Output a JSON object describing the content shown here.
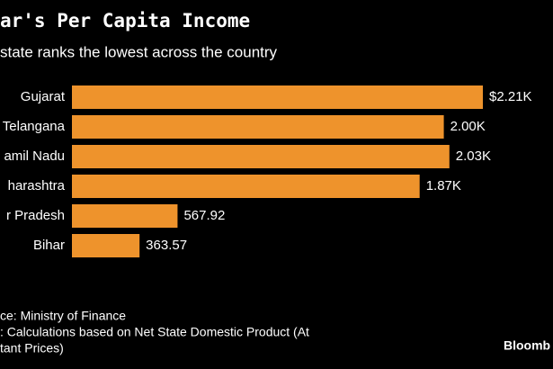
{
  "chart_data": {
    "type": "bar",
    "orientation": "horizontal",
    "title": "ar's Per Capita Income",
    "subtitle": "state ranks the lowest across the country",
    "categories": [
      "Gujarat",
      "Telangana",
      "amil Nadu",
      "harashtra",
      "r Pradesh",
      "Bihar"
    ],
    "values": [
      2210,
      2000,
      2030,
      1870,
      567.92,
      363.57
    ],
    "value_labels": [
      "$2.21K",
      "2.00K",
      "2.03K",
      "1.87K",
      "567.92",
      "363.57"
    ],
    "color": "#ee932c",
    "notes": [
      "ce: Ministry of Finance",
      ": Calculations based on Net State Domestic Product (At",
      "tant Prices)"
    ],
    "brand": "Bloomb"
  }
}
